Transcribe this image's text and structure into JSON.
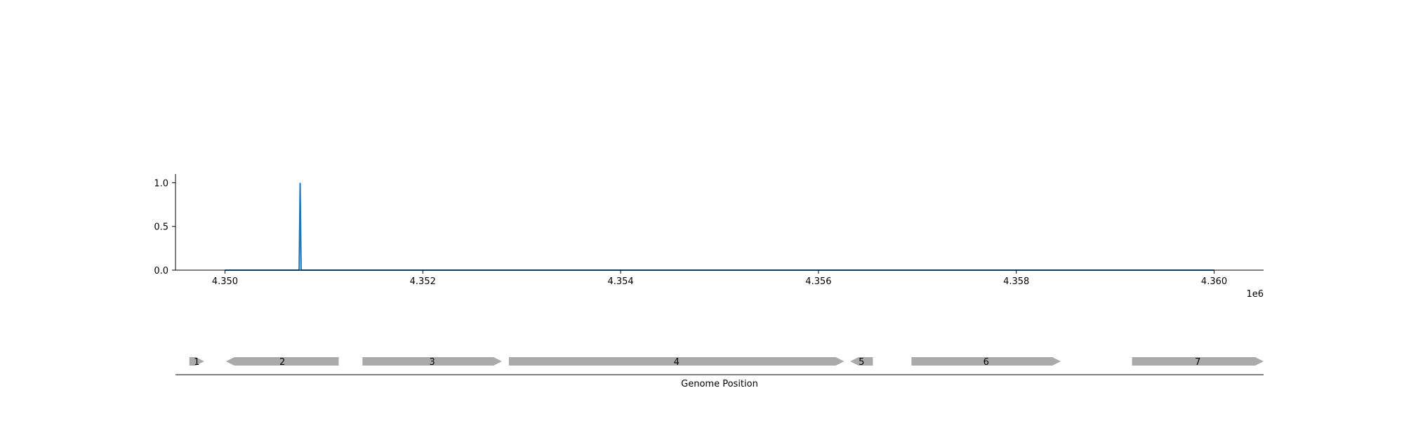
{
  "chart_data": [
    {
      "type": "line",
      "x": [
        4350000,
        4350750,
        4350760,
        4350770,
        4360000
      ],
      "y": [
        0,
        0,
        1,
        0,
        0
      ],
      "xlim": [
        4349500,
        4360500
      ],
      "ylim": [
        0,
        1.1
      ],
      "xticks": [
        4350000,
        4352000,
        4354000,
        4356000,
        4358000,
        4360000
      ],
      "xtick_labels": [
        "4.350",
        "4.352",
        "4.354",
        "4.356",
        "4.358",
        "4.360"
      ],
      "x_offset_label": "1e6",
      "yticks": [
        0,
        0.5,
        1
      ],
      "ytick_labels": [
        "0.0",
        "0.5",
        "1.0"
      ],
      "colors": {
        "line": "#1f77b4",
        "axes": "#000000"
      },
      "grid": false
    },
    {
      "type": "gene-track",
      "xlabel": "Genome Position",
      "features": [
        {
          "label": "1",
          "start": 4349640,
          "end": 4349790,
          "strand": "+"
        },
        {
          "label": "2",
          "start": 4350010,
          "end": 4351150,
          "strand": "-"
        },
        {
          "label": "3",
          "start": 4351390,
          "end": 4352800,
          "strand": "+"
        },
        {
          "label": "4",
          "start": 4352870,
          "end": 4356260,
          "strand": "+"
        },
        {
          "label": "5",
          "start": 4356320,
          "end": 4356550,
          "strand": "-"
        },
        {
          "label": "6",
          "start": 4356940,
          "end": 4358450,
          "strand": "+"
        },
        {
          "label": "7",
          "start": 4359170,
          "end": 4360500,
          "strand": "+"
        }
      ],
      "colors": {
        "feature": "#aaaaaa"
      }
    }
  ]
}
